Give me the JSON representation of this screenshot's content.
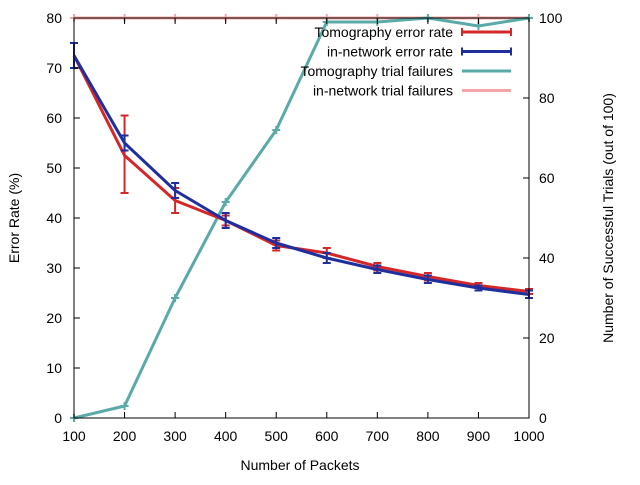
{
  "chart_data": {
    "type": "line",
    "title": "",
    "xlabel": "Number of Packets",
    "ylabel": "Error Rate (%)",
    "y2label": "Number of Successful Trials (out of 100)",
    "xlim": [
      100,
      1000
    ],
    "ylim": [
      0,
      80
    ],
    "y2lim": [
      0,
      100
    ],
    "x_ticks": [
      "100",
      "200",
      "300",
      "400",
      "500",
      "600",
      "700",
      "800",
      "900",
      "1000"
    ],
    "y_ticks": [
      "0",
      "10",
      "20",
      "30",
      "40",
      "50",
      "60",
      "70",
      "80"
    ],
    "y2_ticks": [
      "0",
      "20",
      "40",
      "60",
      "80",
      "100"
    ],
    "grid": false,
    "legend_position": "top-right",
    "x": [
      100,
      200,
      300,
      400,
      500,
      600,
      700,
      800,
      900,
      1000
    ],
    "series": [
      {
        "name": "Tomography error rate",
        "axis": "left",
        "color": "#d62728",
        "values": [
          72.5,
          52.5,
          43.5,
          39.5,
          34.5,
          33.0,
          30.3,
          28.3,
          26.5,
          25.3
        ],
        "err_low": [
          70.0,
          45.0,
          41.0,
          38.5,
          33.5,
          32.0,
          29.5,
          27.5,
          26.0,
          24.8
        ],
        "err_high": [
          75.0,
          60.5,
          46.0,
          40.5,
          35.5,
          34.0,
          31.0,
          29.0,
          27.0,
          25.8
        ]
      },
      {
        "name": "in-network error rate",
        "axis": "left",
        "color": "#1f2f9e",
        "values": [
          72.5,
          55.0,
          45.5,
          39.5,
          35.0,
          32.0,
          29.7,
          27.7,
          26.0,
          24.7
        ],
        "err_low": [
          70.0,
          53.5,
          44.0,
          38.0,
          34.0,
          31.0,
          29.0,
          27.0,
          25.5,
          24.0
        ],
        "err_high": [
          75.0,
          56.5,
          47.0,
          41.0,
          36.0,
          33.0,
          30.5,
          28.5,
          26.5,
          25.5
        ]
      },
      {
        "name": "Tomography trial failures",
        "axis": "right",
        "color": "#5aaaa8",
        "values": [
          0,
          3,
          30,
          54,
          72,
          99,
          99,
          100,
          98,
          100
        ]
      },
      {
        "name": "in-network trial failures",
        "axis": "right",
        "color": "#f4a6a6",
        "values": [
          100,
          100,
          100,
          100,
          100,
          100,
          100,
          100,
          100,
          100
        ]
      }
    ]
  }
}
